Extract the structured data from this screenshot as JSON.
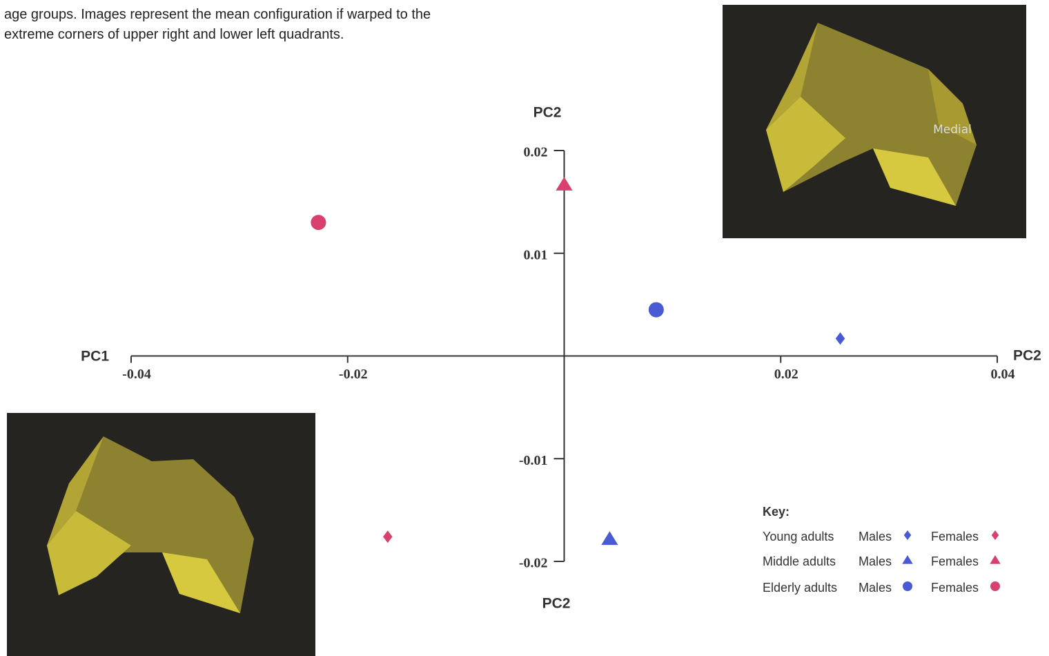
{
  "caption": [
    "age groups. Images represent the mean configuration if warped to the",
    "extreme corners of upper right and lower left quadrants."
  ],
  "inset_label": "Medial",
  "chart_data": {
    "type": "scatter",
    "x_label_left": "PC1",
    "x_label_right": "PC2",
    "y_label_top": "PC2",
    "y_label_bottom": "PC2",
    "xlim": [
      -0.04,
      0.04
    ],
    "ylim": [
      -0.02,
      0.02
    ],
    "xticks": [
      -0.04,
      -0.02,
      0.02,
      0.04
    ],
    "yticks": [
      0.02,
      0.01,
      -0.01,
      -0.02
    ],
    "legend_title": "Key:",
    "groups": [
      "Young adults",
      "Middle adults",
      "Elderly adults"
    ],
    "series": [
      {
        "name": "Males",
        "marker": "diamond",
        "color": "#4a5ad2",
        "x": [
          0.0255
        ],
        "y": [
          0.0017
        ]
      },
      {
        "name": "Females",
        "marker": "diamond",
        "color": "#d8406e",
        "x": [
          -0.0163
        ],
        "y": [
          -0.0176
        ]
      },
      {
        "name": "Males",
        "marker": "triangle",
        "color": "#4a5ad2",
        "x": [
          0.0042
        ],
        "y": [
          -0.0178
        ]
      },
      {
        "name": "Females",
        "marker": "triangle",
        "color": "#d8406e",
        "x": [
          0.0
        ],
        "y": [
          0.0167
        ]
      },
      {
        "name": "Males",
        "marker": "circle",
        "color": "#4a5ad2",
        "x": [
          0.0085
        ],
        "y": [
          0.0045
        ]
      },
      {
        "name": "Females",
        "marker": "circle",
        "color": "#d8406e",
        "x": [
          -0.0227
        ],
        "y": [
          0.013
        ]
      }
    ]
  }
}
